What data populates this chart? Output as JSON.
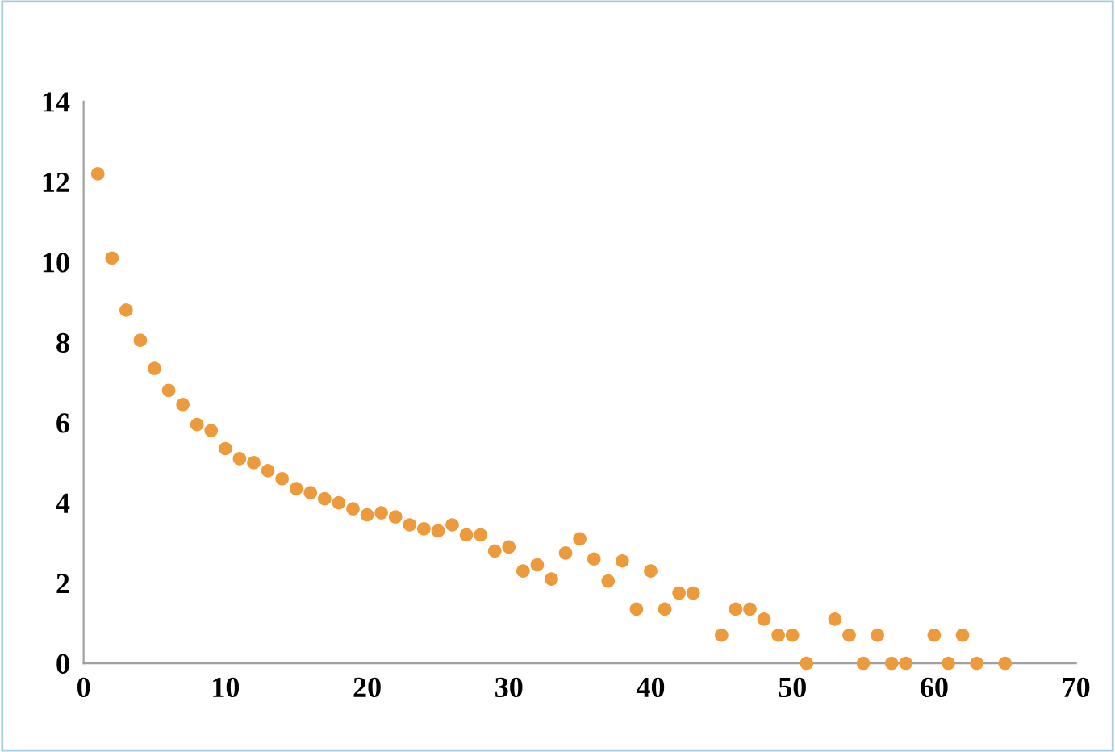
{
  "chart_data": {
    "type": "scatter",
    "color": "#ed9a3c",
    "marker": "circle",
    "grid": false,
    "legend": false,
    "x": [
      1,
      2,
      3,
      4,
      5,
      6,
      7,
      8,
      9,
      10,
      11,
      12,
      13,
      14,
      15,
      16,
      17,
      18,
      19,
      20,
      21,
      22,
      23,
      24,
      25,
      26,
      27,
      28,
      29,
      30,
      31,
      32,
      33,
      34,
      35,
      36,
      37,
      38,
      39,
      40,
      41,
      42,
      43,
      45,
      46,
      47,
      48,
      49,
      50,
      51,
      53,
      54,
      55,
      56,
      57,
      58,
      60,
      61,
      62,
      63,
      65
    ],
    "values": [
      12.2,
      10.1,
      8.8,
      8.05,
      7.35,
      6.8,
      6.45,
      5.95,
      5.8,
      5.35,
      5.1,
      5.0,
      4.8,
      4.6,
      4.35,
      4.25,
      4.1,
      4.0,
      3.85,
      3.7,
      3.75,
      3.65,
      3.45,
      3.35,
      3.3,
      3.45,
      3.2,
      3.2,
      2.8,
      2.9,
      2.3,
      2.45,
      2.1,
      2.75,
      3.1,
      2.6,
      2.05,
      2.55,
      1.35,
      2.3,
      1.35,
      1.75,
      1.75,
      0.7,
      1.35,
      1.35,
      1.1,
      0.7,
      0.7,
      0,
      1.1,
      0.7,
      0,
      0.7,
      0,
      0,
      0.7,
      0,
      0.7,
      0,
      0
    ],
    "xlim": [
      0,
      70
    ],
    "xticks": [
      0,
      10,
      20,
      30,
      40,
      50,
      60,
      70
    ],
    "ylim": [
      0,
      14
    ],
    "yticks": [
      0,
      2,
      4,
      6,
      8,
      10,
      12,
      14
    ]
  }
}
